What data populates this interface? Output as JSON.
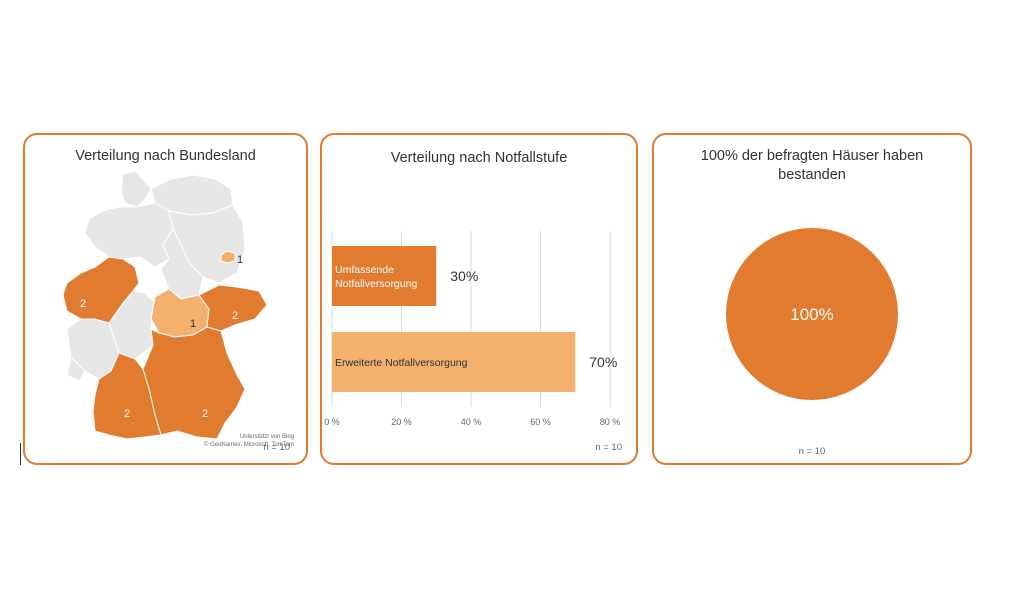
{
  "colors": {
    "accent": "#e07b30",
    "light": "#f4b06f",
    "grey": "#e6e6e6",
    "white": "#ffffff"
  },
  "map_card": {
    "title": "Verteilung nach Bundesland",
    "attribution_1": "Unterstützt von Bing",
    "attribution_2": "© GeoNames, Microsoft, TomTom",
    "n_label": "n = 10"
  },
  "bar_card": {
    "n_label": "n = 10"
  },
  "pie_card": {
    "n_label": "n = 10"
  },
  "chart_data": [
    {
      "type": "map",
      "title": "Verteilung nach Bundesland",
      "regions": [
        {
          "name": "Berlin",
          "value": 1
        },
        {
          "name": "Nordrhein-Westfalen",
          "value": 2
        },
        {
          "name": "Thüringen",
          "value": 1
        },
        {
          "name": "Sachsen",
          "value": 2
        },
        {
          "name": "Baden-Württemberg",
          "value": 2
        },
        {
          "name": "Bayern",
          "value": 2
        }
      ]
    },
    {
      "type": "bar",
      "orientation": "horizontal",
      "title": "Verteilung nach Notfallstufe",
      "categories": [
        "Umfassende Notfallversorgung",
        "Erweiterte Notfallversorgung"
      ],
      "values": [
        30,
        70
      ],
      "value_labels": [
        "30%",
        "70%"
      ],
      "xlim": [
        0,
        80
      ],
      "xticks": [
        "0 %",
        "20 %",
        "40 %",
        "60 %",
        "80 %"
      ],
      "grid": true
    },
    {
      "type": "pie",
      "title": "100% der befragten Häuser haben bestanden",
      "values": [
        100
      ],
      "value_labels": [
        "100%"
      ]
    }
  ]
}
